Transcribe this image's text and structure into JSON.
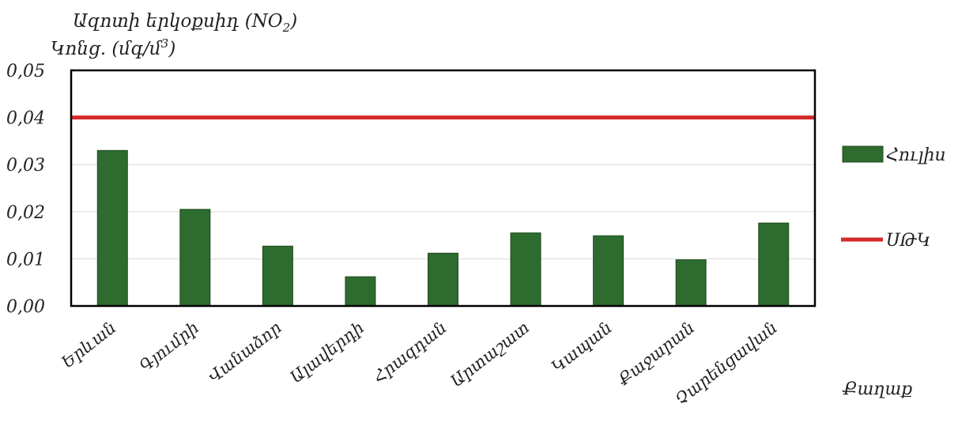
{
  "chart_data": {
    "type": "bar",
    "title": "Ազոտի երկօքսիդ (NO",
    "title_sub": "2",
    "title_end": ")",
    "ylabel": "Կոնց. (մգ/մ",
    "ylabel_sup": "3",
    "ylabel_end": ")",
    "xlabel": "Քաղաք",
    "categories": [
      "Երևան",
      "Գյումրի",
      "Վանաձոր",
      "Ալավերդի",
      "Հրազդան",
      "Արտաշատ",
      "Կապան",
      "Քաջարան",
      "Չարենցավան"
    ],
    "series": [
      {
        "name": "Հուլիս",
        "values": [
          0.033,
          0.0205,
          0.0127,
          0.0062,
          0.0112,
          0.0155,
          0.0149,
          0.0098,
          0.0176
        ],
        "color": "#2e6b2e"
      }
    ],
    "reference_line": {
      "name": "ՍԹԿ",
      "value": 0.04,
      "color": "#d42a2a"
    },
    "y_ticks": [
      "0,00",
      "0,01",
      "0,02",
      "0,03",
      "0,04",
      "0,05"
    ],
    "ylim": [
      0,
      0.05
    ],
    "grid": true,
    "legend_position": "right"
  }
}
